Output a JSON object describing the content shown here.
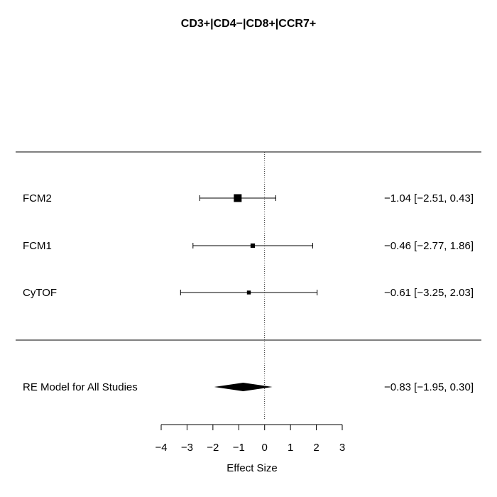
{
  "chart_data": {
    "type": "forest",
    "title": "CD3+|CD4−|CD8+|CCR7+",
    "xlabel": "Effect Size",
    "xlim": [
      -4,
      3
    ],
    "ticks": [
      -4,
      -3,
      -2,
      -1,
      0,
      1,
      2,
      3
    ],
    "tick_labels": [
      "−4",
      "−3",
      "−2",
      "−1",
      "0",
      "1",
      "2",
      "3"
    ],
    "reference_line": 0,
    "studies": [
      {
        "label": "FCM2",
        "estimate": -1.04,
        "ci_lower": -2.51,
        "ci_upper": 0.43,
        "text": "−1.04 [−2.51, 0.43]",
        "weight": 1.0
      },
      {
        "label": "FCM1",
        "estimate": -0.46,
        "ci_lower": -2.77,
        "ci_upper": 1.86,
        "text": "−0.46 [−2.77, 1.86]",
        "weight": 0.4
      },
      {
        "label": "CyTOF",
        "estimate": -0.61,
        "ci_lower": -3.25,
        "ci_upper": 2.03,
        "text": "−0.61 [−3.25, 2.03]",
        "weight": 0.3
      }
    ],
    "summary": {
      "label": "RE Model for All Studies",
      "estimate": -0.83,
      "ci_lower": -1.95,
      "ci_upper": 0.3,
      "text": "−0.83 [−1.95, 0.30]"
    }
  }
}
